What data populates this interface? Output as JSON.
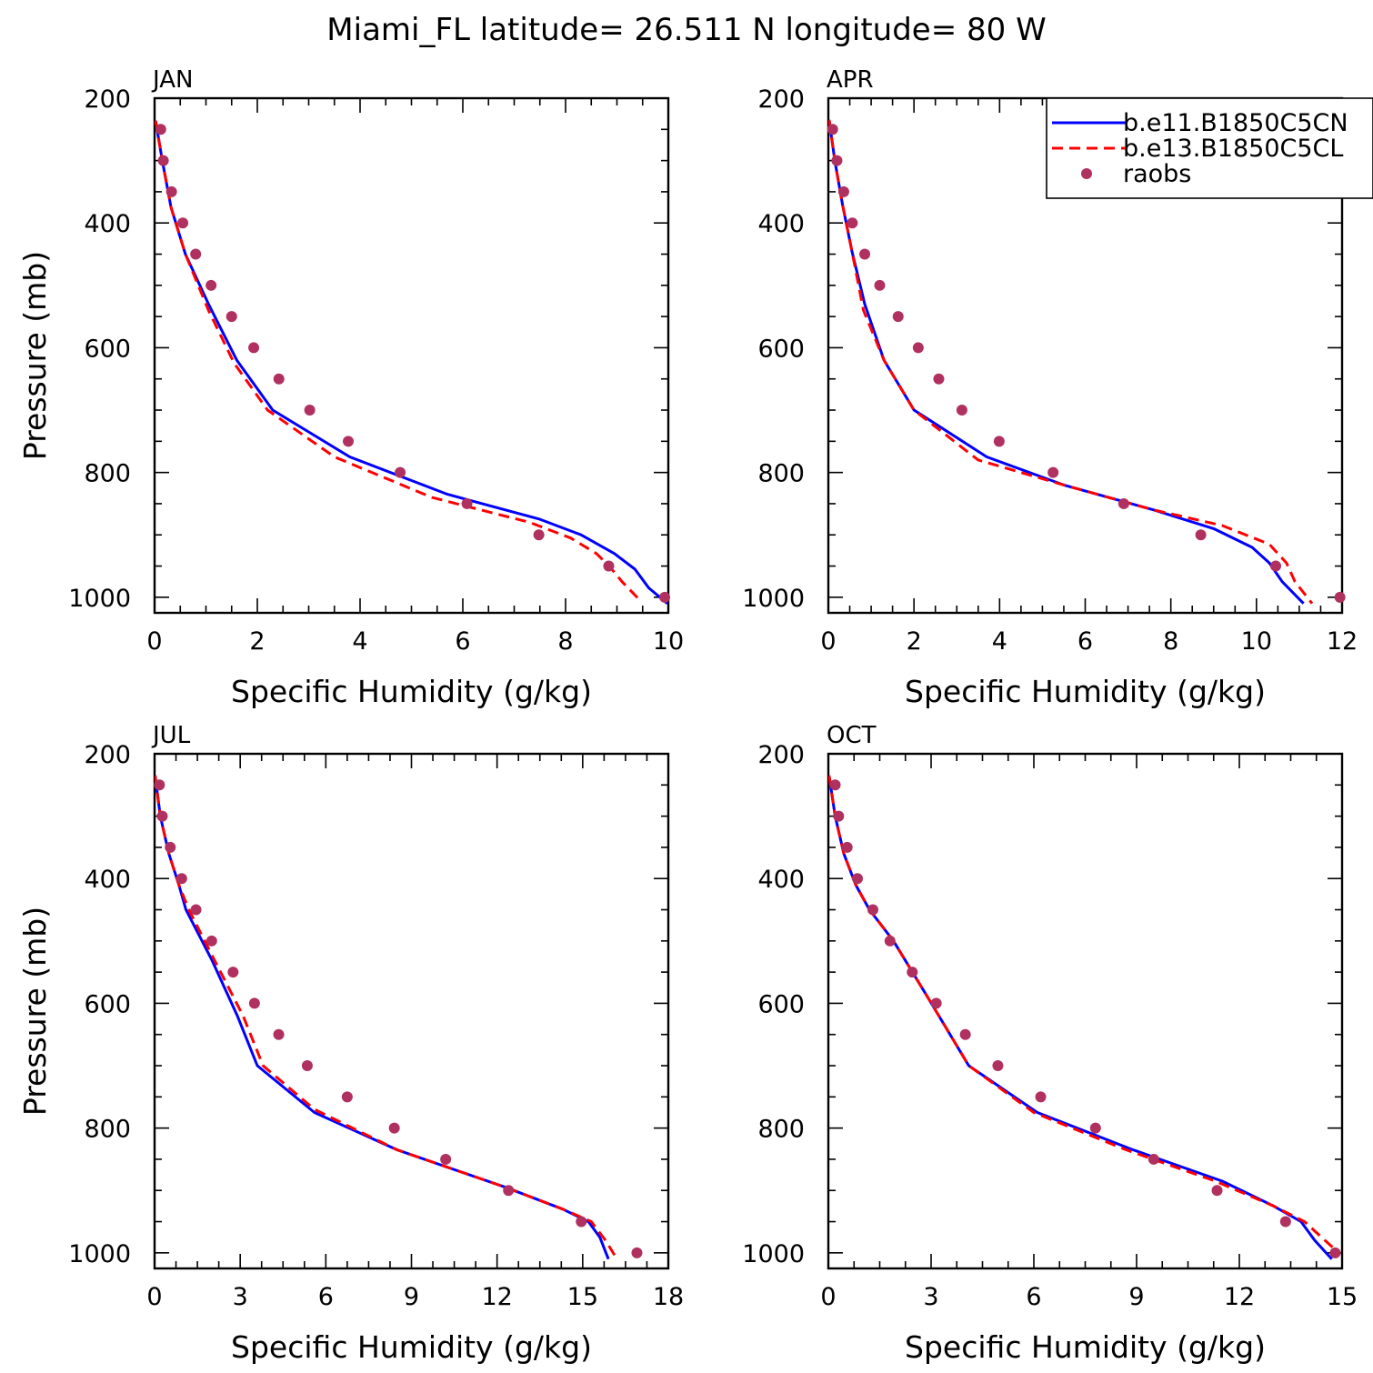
{
  "title": "Miami_FL  latitude= 26.511 N longitude= 80 W",
  "colors": {
    "model1": "#0000ff",
    "model2": "#ff0000",
    "obs": "#b03060"
  },
  "legend": {
    "placement": "top-right of APR panel",
    "entries": [
      {
        "label": "b.e11.B1850C5CN",
        "style": "solid",
        "color": "#0000ff"
      },
      {
        "label": "b.e13.B1850C5CL",
        "style": "dashed",
        "color": "#ff0000"
      },
      {
        "label": "raobs",
        "style": "marker",
        "color": "#b03060"
      }
    ]
  },
  "chart_data": [
    {
      "type": "line",
      "panel": "JAN",
      "xlabel": "Specific Humidity (g/kg)",
      "ylabel": "Pressure (mb)",
      "xlim": [
        0,
        10
      ],
      "xticks": [
        0,
        2,
        4,
        6,
        8,
        10
      ],
      "ylim": [
        1025,
        200
      ],
      "yticks": [
        200,
        400,
        600,
        800,
        1000
      ],
      "series": [
        {
          "name": "b.e11.B1850C5CN",
          "style": "solid",
          "x": [
            0.02,
            0.15,
            0.32,
            0.6,
            1.05,
            1.6,
            2.3,
            3.8,
            5.7,
            7.5,
            8.3,
            8.95,
            9.35,
            9.62,
            9.98
          ],
          "y": [
            236,
            300,
            375,
            450,
            530,
            620,
            700,
            775,
            835,
            875,
            900,
            930,
            955,
            985,
            1010
          ]
        },
        {
          "name": "b.e13.B1850C5CL",
          "style": "dashed",
          "x": [
            0.02,
            0.15,
            0.32,
            0.6,
            1.05,
            1.55,
            2.2,
            3.5,
            5.4,
            7.3,
            8.1,
            8.6,
            8.85,
            9.1,
            9.45
          ],
          "y": [
            236,
            300,
            375,
            450,
            540,
            625,
            700,
            775,
            840,
            880,
            905,
            930,
            950,
            975,
            1005
          ]
        },
        {
          "name": "raobs",
          "style": "marker",
          "x": [
            0.12,
            0.17,
            0.33,
            0.55,
            0.8,
            1.1,
            1.5,
            1.93,
            2.42,
            3.02,
            3.77,
            4.78,
            6.08,
            7.48,
            8.84,
            9.93
          ],
          "y": [
            250,
            300,
            350,
            400,
            450,
            500,
            550,
            600,
            650,
            700,
            750,
            800,
            850,
            900,
            950,
            1000
          ]
        }
      ]
    },
    {
      "type": "line",
      "panel": "APR",
      "xlabel": "Specific Humidity (g/kg)",
      "ylabel": "Pressure (mb)",
      "xlim": [
        0,
        12
      ],
      "xticks": [
        0,
        2,
        4,
        6,
        8,
        10,
        12
      ],
      "ylim": [
        1025,
        200
      ],
      "yticks": [
        200,
        400,
        600,
        800,
        1000
      ],
      "series": [
        {
          "name": "b.e11.B1850C5CN",
          "style": "solid",
          "x": [
            0.02,
            0.15,
            0.33,
            0.55,
            0.85,
            1.3,
            2.0,
            3.7,
            5.5,
            7.6,
            9.0,
            9.9,
            10.3,
            10.6,
            11.1
          ],
          "y": [
            235,
            300,
            370,
            445,
            530,
            620,
            700,
            775,
            820,
            860,
            890,
            920,
            945,
            975,
            1010
          ]
        },
        {
          "name": "b.e13.B1850C5CL",
          "style": "dashed",
          "x": [
            0.02,
            0.15,
            0.33,
            0.55,
            0.82,
            1.3,
            2.0,
            3.5,
            5.5,
            7.6,
            9.2,
            10.3,
            10.7,
            10.9,
            11.3
          ],
          "y": [
            235,
            300,
            370,
            445,
            540,
            620,
            700,
            780,
            820,
            860,
            885,
            915,
            945,
            975,
            1010
          ]
        },
        {
          "name": "raobs",
          "style": "marker",
          "x": [
            0.1,
            0.2,
            0.36,
            0.56,
            0.85,
            1.2,
            1.63,
            2.1,
            2.58,
            3.12,
            3.99,
            5.25,
            6.9,
            8.7,
            10.45,
            11.95
          ],
          "y": [
            250,
            300,
            350,
            400,
            450,
            500,
            550,
            600,
            650,
            700,
            750,
            800,
            850,
            900,
            950,
            1000
          ]
        }
      ]
    },
    {
      "type": "line",
      "panel": "JUL",
      "xlabel": "Specific Humidity (g/kg)",
      "ylabel": "Pressure (mb)",
      "xlim": [
        0,
        18
      ],
      "xticks": [
        0,
        3,
        6,
        9,
        12,
        15,
        18
      ],
      "ylim": [
        1025,
        200
      ],
      "yticks": [
        200,
        400,
        600,
        800,
        1000
      ],
      "series": [
        {
          "name": "b.e11.B1850C5CN",
          "style": "solid",
          "x": [
            0.02,
            0.2,
            0.5,
            0.85,
            1.1,
            2.0,
            2.9,
            3.6,
            5.6,
            8.5,
            12.3,
            14.3,
            15.2,
            15.6,
            15.9
          ],
          "y": [
            235,
            300,
            360,
            410,
            450,
            530,
            620,
            700,
            775,
            835,
            895,
            930,
            950,
            975,
            1010
          ]
        },
        {
          "name": "b.e13.B1850C5CL",
          "style": "dashed",
          "x": [
            0.02,
            0.2,
            0.5,
            0.85,
            1.2,
            2.2,
            3.1,
            3.8,
            5.6,
            8.5,
            12.3,
            14.3,
            15.3,
            15.8,
            16.2
          ],
          "y": [
            235,
            300,
            360,
            410,
            450,
            540,
            620,
            700,
            770,
            835,
            895,
            930,
            950,
            980,
            1010
          ]
        },
        {
          "name": "raobs",
          "style": "marker",
          "x": [
            0.17,
            0.27,
            0.55,
            0.95,
            1.45,
            2.0,
            2.75,
            3.5,
            4.35,
            5.35,
            6.75,
            8.4,
            10.2,
            12.4,
            14.95,
            16.9
          ],
          "y": [
            250,
            300,
            350,
            400,
            450,
            500,
            550,
            600,
            650,
            700,
            750,
            800,
            850,
            900,
            950,
            1000
          ]
        }
      ]
    },
    {
      "type": "line",
      "panel": "OCT",
      "xlabel": "Specific Humidity (g/kg)",
      "ylabel": "Pressure (mb)",
      "xlim": [
        0,
        15
      ],
      "xticks": [
        0,
        3,
        6,
        9,
        12,
        15
      ],
      "ylim": [
        1025,
        200
      ],
      "yticks": [
        200,
        400,
        600,
        800,
        1000
      ],
      "series": [
        {
          "name": "b.e11.B1850C5CN",
          "style": "solid",
          "x": [
            0.02,
            0.2,
            0.45,
            0.8,
            1.2,
            1.9,
            2.9,
            4.1,
            6.1,
            8.9,
            11.5,
            13.0,
            13.8,
            14.2,
            14.7
          ],
          "y": [
            235,
            300,
            360,
            410,
            450,
            500,
            590,
            700,
            775,
            835,
            885,
            925,
            950,
            980,
            1010
          ]
        },
        {
          "name": "b.e13.B1850C5CL",
          "style": "dashed",
          "x": [
            0.02,
            0.2,
            0.45,
            0.8,
            1.2,
            1.9,
            2.9,
            4.1,
            6.0,
            8.7,
            11.3,
            13.0,
            13.9,
            14.4,
            14.9
          ],
          "y": [
            235,
            300,
            360,
            410,
            450,
            500,
            590,
            700,
            775,
            835,
            885,
            925,
            950,
            975,
            1000
          ]
        },
        {
          "name": "raobs",
          "style": "marker",
          "x": [
            0.2,
            0.3,
            0.55,
            0.85,
            1.3,
            1.8,
            2.45,
            3.15,
            4.0,
            4.95,
            6.2,
            7.8,
            9.5,
            11.35,
            13.35,
            14.8
          ],
          "y": [
            250,
            300,
            350,
            400,
            450,
            500,
            550,
            600,
            650,
            700,
            750,
            800,
            850,
            900,
            950,
            1000
          ]
        }
      ]
    }
  ]
}
